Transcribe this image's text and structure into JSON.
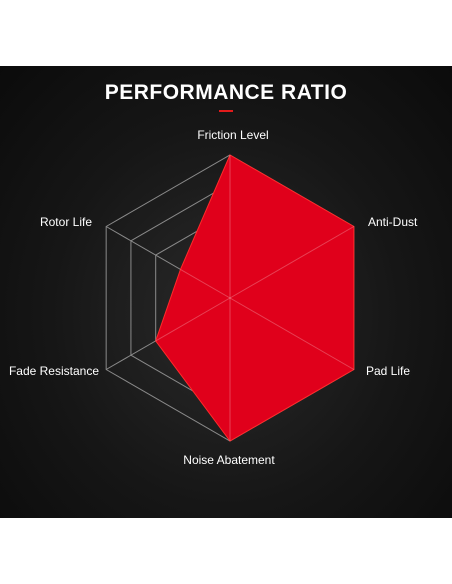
{
  "colors": {
    "background": "#141414",
    "grid": "#8a8a8a",
    "fill": "#e0001b",
    "fill_edge": "#ff2a2a",
    "text": "#ffffff",
    "accent": "#e21b1b"
  },
  "chart_data": {
    "type": "radar",
    "title": "PERFORMANCE RATIO",
    "axes": [
      "Friction Level",
      "Anti-Dust",
      "Pad Life",
      "Noise Abatement",
      "Fade Resistance",
      "Rotor Life"
    ],
    "levels": 5,
    "range": [
      0,
      5
    ],
    "values": [
      5,
      5,
      5,
      5,
      3,
      2
    ],
    "grid": true,
    "legend": "none"
  }
}
